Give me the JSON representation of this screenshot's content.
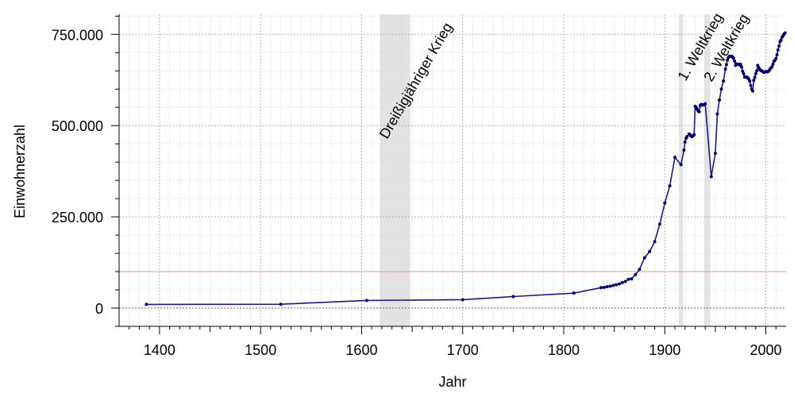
{
  "chart_data": {
    "type": "line",
    "title": "",
    "xlabel": "Jahr",
    "ylabel": "Einwohnerzahl",
    "xlim": [
      1360,
      2020
    ],
    "ylim": [
      -50000,
      805000
    ],
    "x_ticks": [
      1400,
      1500,
      1600,
      1700,
      1800,
      1900,
      2000
    ],
    "y_ticks": [
      {
        "value": 0,
        "label": "0"
      },
      {
        "value": 250000,
        "label": "250.000"
      },
      {
        "value": 500000,
        "label": "500.000"
      },
      {
        "value": 750000,
        "label": "750.000"
      }
    ],
    "grid": true,
    "reference_line": {
      "value": 100000,
      "color": "#ff8c8c"
    },
    "zero_line": true,
    "periods": [
      {
        "label": "Dreißigjähriger Krieg",
        "start": 1618,
        "end": 1648
      },
      {
        "label": "1. Weltkrieg",
        "start": 1914,
        "end": 1918
      },
      {
        "label": "2. Weltkrieg",
        "start": 1939,
        "end": 1945
      }
    ],
    "colors": {
      "line": "#1a1a80",
      "marker": "#00006b",
      "period_band": "#e3e3e3"
    },
    "series": [
      {
        "x": [
          1387,
          1520,
          1605,
          1700,
          1750,
          1810,
          1837,
          1840,
          1843,
          1846,
          1849,
          1852,
          1855,
          1858,
          1861,
          1864,
          1867,
          1871,
          1875,
          1880,
          1885,
          1890,
          1895,
          1900,
          1905,
          1910,
          1916,
          1919,
          1920,
          1921,
          1922,
          1924,
          1925,
          1926,
          1927,
          1928,
          1929,
          1930,
          1931,
          1932,
          1933,
          1934,
          1935,
          1936,
          1937,
          1938,
          1939,
          1940,
          1946,
          1950,
          1952,
          1954,
          1956,
          1958,
          1960,
          1961,
          1962,
          1963,
          1964,
          1965,
          1966,
          1967,
          1968,
          1969,
          1970,
          1971,
          1972,
          1973,
          1974,
          1975,
          1976,
          1977,
          1978,
          1979,
          1980,
          1981,
          1982,
          1983,
          1984,
          1985,
          1986,
          1987,
          1988,
          1989,
          1990,
          1991,
          1992,
          1993,
          1994,
          1995,
          1996,
          1997,
          1998,
          1999,
          2000,
          2001,
          2002,
          2003,
          2004,
          2005,
          2006,
          2007,
          2008,
          2009,
          2010,
          2011,
          2012,
          2013,
          2014,
          2015,
          2016,
          2017,
          2018,
          2019
        ],
        "y": [
          10000,
          10500,
          21000,
          23000,
          31500,
          41000,
          56000,
          57000,
          58500,
          60000,
          62000,
          64000,
          66500,
          70000,
          73000,
          79000,
          80000,
          92000,
          106000,
          138000,
          155000,
          182000,
          230000,
          288000,
          335000,
          413000,
          393000,
          433000,
          455000,
          465000,
          470000,
          477000,
          475000,
          471000,
          470000,
          472000,
          475000,
          553000,
          550000,
          545000,
          540000,
          538000,
          555000,
          558000,
          556000,
          557000,
          557000,
          560000,
          360000,
          424000,
          532000,
          570000,
          600000,
          622000,
          655000,
          667000,
          680000,
          687000,
          690000,
          690000,
          690000,
          688000,
          685000,
          677000,
          665000,
          669000,
          668000,
          668000,
          666000,
          668000,
          661000,
          649000,
          642000,
          633000,
          633000,
          633000,
          631000,
          628000,
          622000,
          610000,
          600000,
          595000,
          624000,
          632000,
          642000,
          650000,
          665000,
          659000,
          654000,
          651000,
          650000,
          648000,
          646000,
          647000,
          648000,
          647000,
          648000,
          650000,
          654000,
          658000,
          661000,
          668000,
          676000,
          679000,
          684000,
          694000,
          707000,
          718000,
          730000,
          734000,
          742000,
          746000,
          751000,
          754000
        ]
      }
    ]
  }
}
